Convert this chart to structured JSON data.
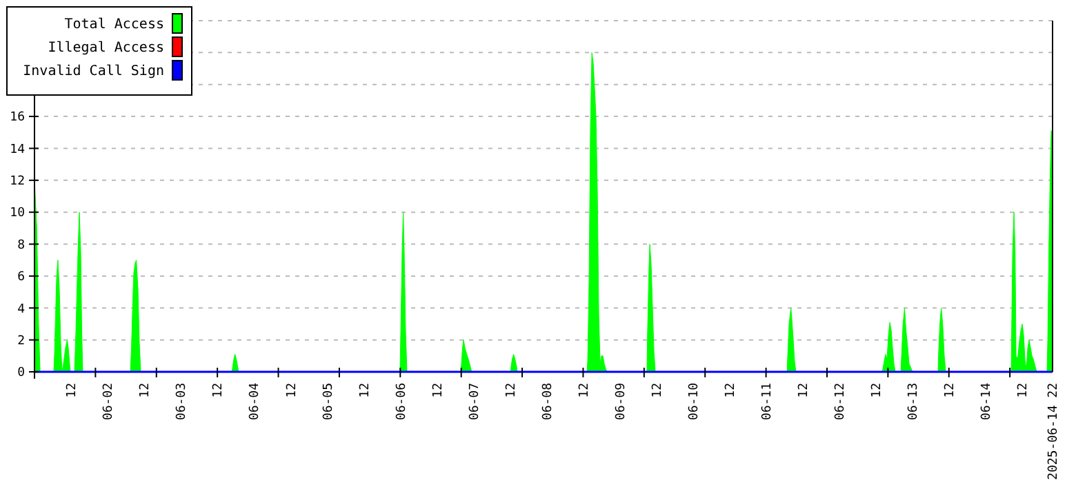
{
  "chart_data": {
    "type": "area",
    "legend": "top left",
    "grid": "y",
    "ylim": [
      0,
      22
    ],
    "yticks": [
      0,
      2,
      4,
      6,
      8,
      10,
      12,
      14,
      16,
      {
        "value": 18,
        "label": null
      },
      {
        "value": 20,
        "label": null
      },
      {
        "value": 22,
        "label": null
      }
    ],
    "xlim": [
      "2025-06-01T00:00",
      "2025-06-14T22:00"
    ],
    "xticks": [
      {
        "value": "2025-06-01T12:00",
        "label": "12"
      },
      {
        "value": "2025-06-02T00:00",
        "label": "06-02"
      },
      {
        "value": "2025-06-02T12:00",
        "label": "12"
      },
      {
        "value": "2025-06-03T00:00",
        "label": "06-03"
      },
      {
        "value": "2025-06-03T12:00",
        "label": "12"
      },
      {
        "value": "2025-06-04T00:00",
        "label": "06-04"
      },
      {
        "value": "2025-06-04T12:00",
        "label": "12"
      },
      {
        "value": "2025-06-05T00:00",
        "label": "06-05"
      },
      {
        "value": "2025-06-05T12:00",
        "label": "12"
      },
      {
        "value": "2025-06-06T00:00",
        "label": "06-06"
      },
      {
        "value": "2025-06-06T12:00",
        "label": "12"
      },
      {
        "value": "2025-06-07T00:00",
        "label": "06-07"
      },
      {
        "value": "2025-06-07T12:00",
        "label": "12"
      },
      {
        "value": "2025-06-08T00:00",
        "label": "06-08"
      },
      {
        "value": "2025-06-08T12:00",
        "label": "12"
      },
      {
        "value": "2025-06-09T00:00",
        "label": "06-09"
      },
      {
        "value": "2025-06-09T12:00",
        "label": "12"
      },
      {
        "value": "2025-06-10T00:00",
        "label": "06-10"
      },
      {
        "value": "2025-06-10T12:00",
        "label": "12"
      },
      {
        "value": "2025-06-11T00:00",
        "label": "06-11"
      },
      {
        "value": "2025-06-11T12:00",
        "label": "12"
      },
      {
        "value": "2025-06-12T00:00",
        "label": "06-12"
      },
      {
        "value": "2025-06-12T12:00",
        "label": "12"
      },
      {
        "value": "2025-06-13T00:00",
        "label": "06-13"
      },
      {
        "value": "2025-06-13T12:00",
        "label": "12"
      },
      {
        "value": "2025-06-14T00:00",
        "label": "06-14"
      },
      {
        "value": "2025-06-14T12:00",
        "label": "12"
      },
      {
        "value": "2025-06-14T22:00",
        "label": "2025-06-14 22"
      },
      {
        "value": "2025-06-01T00:00",
        "label": null
      },
      {
        "value": "2025-06-01T20:00",
        "label": null
      },
      {
        "value": "2025-06-02T16:00",
        "label": null
      },
      {
        "value": "2025-06-03T12:00",
        "label": null
      },
      {
        "value": "2025-06-04T08:00",
        "label": null
      },
      {
        "value": "2025-06-05T04:00",
        "label": null
      },
      {
        "value": "2025-06-06T00:00",
        "label": null
      },
      {
        "value": "2025-06-06T20:00",
        "label": null
      },
      {
        "value": "2025-06-07T16:00",
        "label": null
      },
      {
        "value": "2025-06-08T12:00",
        "label": null
      },
      {
        "value": "2025-06-09T08:00",
        "label": null
      },
      {
        "value": "2025-06-10T04:00",
        "label": null
      },
      {
        "value": "2025-06-11T00:00",
        "label": null
      },
      {
        "value": "2025-06-11T20:00",
        "label": null
      },
      {
        "value": "2025-06-12T16:00",
        "label": null
      },
      {
        "value": "2025-06-13T12:00",
        "label": null
      },
      {
        "value": "2025-06-14T08:00",
        "label": null
      }
    ],
    "series": [
      {
        "name": "Total Access",
        "color": "#00ff00",
        "x": [
          "2025-06-01T00:00",
          "2025-06-01T00:45",
          "2025-06-01T01:20",
          "2025-06-01T01:50",
          "2025-06-01T06:20",
          "2025-06-01T06:34",
          "2025-06-01T06:55",
          "2025-06-01T07:14",
          "2025-06-01T07:41",
          "2025-06-01T08:09",
          "2025-06-01T08:36",
          "2025-06-01T09:03",
          "2025-06-01T09:30",
          "2025-06-01T10:11",
          "2025-06-01T10:44",
          "2025-06-01T11:05",
          "2025-06-01T11:32",
          "2025-06-01T11:46",
          "2025-06-01T13:08",
          "2025-06-01T13:35",
          "2025-06-01T14:16",
          "2025-06-01T14:43",
          "2025-06-01T15:10",
          "2025-06-01T15:31",
          "2025-06-01T15:50",
          "2025-06-02T07:28",
          "2025-06-02T07:49",
          "2025-06-02T08:16",
          "2025-06-02T08:35",
          "2025-06-02T09:02",
          "2025-06-02T09:24",
          "2025-06-02T09:57",
          "2025-06-02T10:24",
          "2025-06-02T10:51",
          "2025-06-03T16:43",
          "2025-06-03T16:57",
          "2025-06-03T17:24",
          "2025-06-03T17:46",
          "2025-06-03T18:13",
          "2025-06-03T18:40",
          "2025-06-03T18:59",
          "2025-06-05T23:56",
          "2025-06-06T00:10",
          "2025-06-06T00:37",
          "2025-06-06T00:59",
          "2025-06-06T01:18",
          "2025-06-06T01:45",
          "2025-06-06T02:12",
          "2025-06-06T19:51",
          "2025-06-06T20:05",
          "2025-06-06T20:26",
          "2025-06-06T20:46",
          "2025-06-06T21:13",
          "2025-06-06T21:40",
          "2025-06-06T22:20",
          "2025-06-06T23:01",
          "2025-06-06T23:28",
          "2025-06-07T12:09",
          "2025-06-07T12:17",
          "2025-06-07T12:44",
          "2025-06-07T13:11",
          "2025-06-07T13:38",
          "2025-06-07T14:11",
          "2025-06-07T14:25",
          "2025-06-08T13:16",
          "2025-06-08T13:30",
          "2025-06-08T13:57",
          "2025-06-08T14:24",
          "2025-06-08T14:52",
          "2025-06-08T15:19",
          "2025-06-08T15:46",
          "2025-06-08T16:13",
          "2025-06-08T16:40",
          "2025-06-08T17:07",
          "2025-06-08T17:34",
          "2025-06-08T18:01",
          "2025-06-08T18:29",
          "2025-06-08T18:56",
          "2025-06-08T19:23",
          "2025-06-08T19:50",
          "2025-06-09T08:57",
          "2025-06-09T09:05",
          "2025-06-09T09:32",
          "2025-06-09T09:52",
          "2025-06-09T10:19",
          "2025-06-09T10:46",
          "2025-06-09T11:13",
          "2025-06-09T11:40",
          "2025-06-11T06:54",
          "2025-06-11T07:07",
          "2025-06-11T07:34",
          "2025-06-11T08:10",
          "2025-06-11T08:28",
          "2025-06-11T08:56",
          "2025-06-11T09:23",
          "2025-06-11T09:50",
          "2025-06-12T14:07",
          "2025-06-12T14:21",
          "2025-06-12T14:48",
          "2025-06-12T15:15",
          "2025-06-12T15:42",
          "2025-06-12T16:10",
          "2025-06-12T16:37",
          "2025-06-12T17:04",
          "2025-06-12T17:31",
          "2025-06-12T17:58",
          "2025-06-12T18:25",
          "2025-06-12T20:14",
          "2025-06-12T20:28",
          "2025-06-12T20:55",
          "2025-06-12T21:27",
          "2025-06-12T21:55",
          "2025-06-12T22:30",
          "2025-06-12T22:57",
          "2025-06-12T23:38",
          "2025-06-13T00:05",
          "2025-06-13T08:27",
          "2025-06-13T08:35",
          "2025-06-13T09:02",
          "2025-06-13T09:29",
          "2025-06-13T09:57",
          "2025-06-13T10:29",
          "2025-06-13T10:56",
          "2025-06-14T08:26",
          "2025-06-14T08:35",
          "2025-06-14T08:54",
          "2025-06-14T09:21",
          "2025-06-14T09:43",
          "2025-06-14T10:02",
          "2025-06-14T10:34",
          "2025-06-14T11:10",
          "2025-06-14T11:37",
          "2025-06-14T12:04",
          "2025-06-14T12:31",
          "2025-06-14T12:58",
          "2025-06-14T13:25",
          "2025-06-14T13:52",
          "2025-06-14T14:19",
          "2025-06-14T14:47",
          "2025-06-14T15:14",
          "2025-06-14T15:41",
          "2025-06-14T16:22",
          "2025-06-14T16:49",
          "2025-06-14T20:12",
          "2025-06-14T20:26",
          "2025-06-14T20:47",
          "2025-06-14T21:14",
          "2025-06-14T21:34",
          "2025-06-14T21:47",
          "2025-06-14T22:00"
        ],
        "values": [
          12,
          9,
          3,
          0,
          0,
          1.1,
          3.5,
          5.8,
          7,
          5.2,
          1.8,
          0,
          0.5,
          1.5,
          2,
          1.5,
          0.5,
          0,
          0,
          2.5,
          7.5,
          10,
          7.5,
          2.5,
          0,
          0,
          1.5,
          4.5,
          6.2,
          6.8,
          7,
          5.2,
          1.8,
          0,
          0,
          0.2,
          0.8,
          1.1,
          0.8,
          0.3,
          0,
          0,
          2.5,
          7.5,
          10,
          7.5,
          2.5,
          0,
          0,
          0.5,
          1.5,
          2,
          1.5,
          1.2,
          0.8,
          0.3,
          0,
          0,
          0.2,
          0.8,
          1.1,
          0.8,
          0.3,
          0,
          0,
          0.7,
          5.7,
          15.3,
          20,
          19.3,
          17.7,
          15.9,
          11.3,
          3.7,
          0.5,
          1,
          1,
          0.5,
          0.2,
          0,
          0,
          2,
          6,
          8,
          6.7,
          4,
          1.3,
          0,
          0,
          1,
          3,
          4,
          3.3,
          2,
          0.6,
          0,
          0,
          0.2,
          0.7,
          1.1,
          0.8,
          2.3,
          3.1,
          2.6,
          1.5,
          0.5,
          0,
          0,
          1,
          2.9,
          4,
          2.6,
          1.5,
          0.5,
          0.2,
          0,
          0,
          1,
          3,
          4,
          3,
          1,
          0,
          0,
          2.5,
          7.5,
          10,
          7.5,
          1,
          0.8,
          2,
          2.6,
          3,
          2.3,
          0.7,
          0.2,
          1.5,
          2,
          1.5,
          1,
          0.8,
          0.3,
          0,
          0,
          2,
          7.5,
          12.5,
          15.1,
          15,
          10.5
        ]
      },
      {
        "name": "Illegal Access",
        "color": "#ff0000",
        "type": "line"
      },
      {
        "name": "Invalid Call Sign",
        "color": "#0000ff",
        "type": "line",
        "x": [
          "2025-06-01T00:00",
          "2025-06-14T22:00"
        ],
        "values": [
          0,
          0
        ]
      }
    ]
  }
}
